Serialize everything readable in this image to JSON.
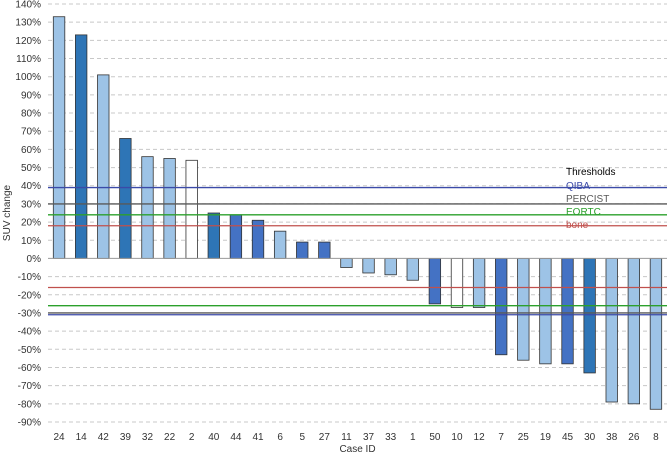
{
  "chart_data": {
    "type": "bar",
    "title": "",
    "xlabel": "Case ID",
    "ylabel": "SUV change",
    "ylim": [
      -90,
      140
    ],
    "ytick_step": 10,
    "ytick_suffix": "%",
    "grid": true,
    "categories": [
      "24",
      "14",
      "42",
      "39",
      "32",
      "22",
      "2",
      "40",
      "44",
      "41",
      "6",
      "5",
      "27",
      "11",
      "37",
      "33",
      "1",
      "50",
      "10",
      "12",
      "7",
      "25",
      "19",
      "45",
      "30",
      "38",
      "26",
      "8"
    ],
    "values": [
      133,
      123,
      101,
      66,
      56,
      55,
      54,
      25,
      24,
      21,
      15,
      9,
      9,
      -5,
      -8,
      -9,
      -12,
      -25,
      -27,
      -27,
      -53,
      -56,
      -58,
      -58,
      -63,
      -79,
      -80,
      -83
    ],
    "bar_styles": [
      "light",
      "dark",
      "light",
      "dark",
      "light",
      "light",
      "white",
      "dark",
      "medium",
      "medium",
      "light",
      "medium",
      "medium",
      "light",
      "light",
      "light",
      "light",
      "medium",
      "white",
      "light",
      "medium",
      "light",
      "light",
      "medium",
      "dark",
      "light",
      "light",
      "light"
    ],
    "style_colors": {
      "light": "#9dc3e6",
      "dark": "#2e75b6",
      "medium": "#4472c4",
      "white": "#ffffff"
    },
    "thresholds": {
      "title": "Thresholds",
      "lines": [
        {
          "name": "QIBA",
          "color": "#3b4aa8",
          "upper": 39,
          "lower": -31
        },
        {
          "name": "PERCIST",
          "color": "#595959",
          "upper": 30,
          "lower": -30
        },
        {
          "name": "EORTC",
          "color": "#2ca02c",
          "upper": 24,
          "lower": -26
        },
        {
          "name": "bone",
          "color": "#c0504d",
          "upper": 18,
          "lower": -16
        }
      ]
    },
    "legend_position": "right"
  }
}
